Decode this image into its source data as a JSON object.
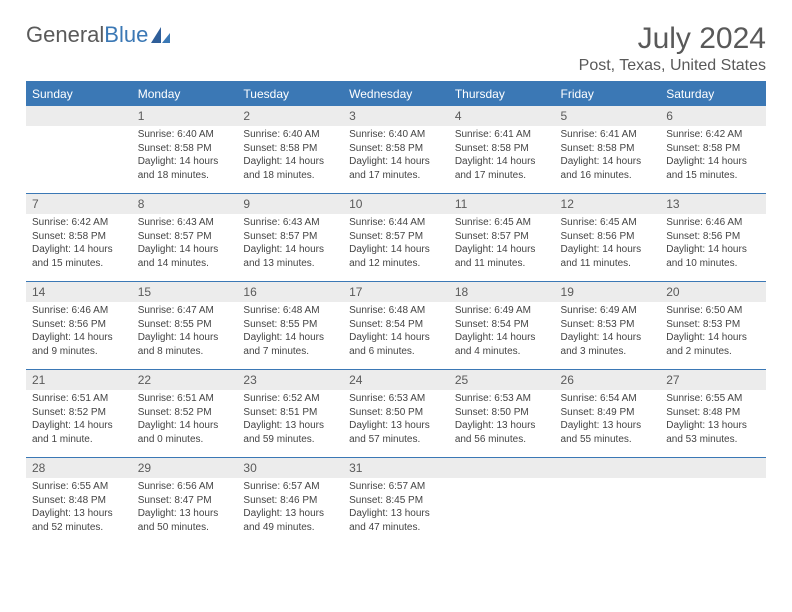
{
  "brand": {
    "part1": "General",
    "part2": "Blue"
  },
  "title": "July 2024",
  "location": "Post, Texas, United States",
  "colors": {
    "header_bg": "#3b78b5",
    "header_text": "#ffffff",
    "daynum_bg": "#ececec",
    "body_bg": "#ffffff",
    "text": "#444444",
    "title_text": "#595959",
    "row_divider": "#3b78b5"
  },
  "weekdays": [
    "Sunday",
    "Monday",
    "Tuesday",
    "Wednesday",
    "Thursday",
    "Friday",
    "Saturday"
  ],
  "weeks": [
    [
      null,
      {
        "n": "1",
        "sunrise": "Sunrise: 6:40 AM",
        "sunset": "Sunset: 8:58 PM",
        "daylight": "Daylight: 14 hours and 18 minutes."
      },
      {
        "n": "2",
        "sunrise": "Sunrise: 6:40 AM",
        "sunset": "Sunset: 8:58 PM",
        "daylight": "Daylight: 14 hours and 18 minutes."
      },
      {
        "n": "3",
        "sunrise": "Sunrise: 6:40 AM",
        "sunset": "Sunset: 8:58 PM",
        "daylight": "Daylight: 14 hours and 17 minutes."
      },
      {
        "n": "4",
        "sunrise": "Sunrise: 6:41 AM",
        "sunset": "Sunset: 8:58 PM",
        "daylight": "Daylight: 14 hours and 17 minutes."
      },
      {
        "n": "5",
        "sunrise": "Sunrise: 6:41 AM",
        "sunset": "Sunset: 8:58 PM",
        "daylight": "Daylight: 14 hours and 16 minutes."
      },
      {
        "n": "6",
        "sunrise": "Sunrise: 6:42 AM",
        "sunset": "Sunset: 8:58 PM",
        "daylight": "Daylight: 14 hours and 15 minutes."
      }
    ],
    [
      {
        "n": "7",
        "sunrise": "Sunrise: 6:42 AM",
        "sunset": "Sunset: 8:58 PM",
        "daylight": "Daylight: 14 hours and 15 minutes."
      },
      {
        "n": "8",
        "sunrise": "Sunrise: 6:43 AM",
        "sunset": "Sunset: 8:57 PM",
        "daylight": "Daylight: 14 hours and 14 minutes."
      },
      {
        "n": "9",
        "sunrise": "Sunrise: 6:43 AM",
        "sunset": "Sunset: 8:57 PM",
        "daylight": "Daylight: 14 hours and 13 minutes."
      },
      {
        "n": "10",
        "sunrise": "Sunrise: 6:44 AM",
        "sunset": "Sunset: 8:57 PM",
        "daylight": "Daylight: 14 hours and 12 minutes."
      },
      {
        "n": "11",
        "sunrise": "Sunrise: 6:45 AM",
        "sunset": "Sunset: 8:57 PM",
        "daylight": "Daylight: 14 hours and 11 minutes."
      },
      {
        "n": "12",
        "sunrise": "Sunrise: 6:45 AM",
        "sunset": "Sunset: 8:56 PM",
        "daylight": "Daylight: 14 hours and 11 minutes."
      },
      {
        "n": "13",
        "sunrise": "Sunrise: 6:46 AM",
        "sunset": "Sunset: 8:56 PM",
        "daylight": "Daylight: 14 hours and 10 minutes."
      }
    ],
    [
      {
        "n": "14",
        "sunrise": "Sunrise: 6:46 AM",
        "sunset": "Sunset: 8:56 PM",
        "daylight": "Daylight: 14 hours and 9 minutes."
      },
      {
        "n": "15",
        "sunrise": "Sunrise: 6:47 AM",
        "sunset": "Sunset: 8:55 PM",
        "daylight": "Daylight: 14 hours and 8 minutes."
      },
      {
        "n": "16",
        "sunrise": "Sunrise: 6:48 AM",
        "sunset": "Sunset: 8:55 PM",
        "daylight": "Daylight: 14 hours and 7 minutes."
      },
      {
        "n": "17",
        "sunrise": "Sunrise: 6:48 AM",
        "sunset": "Sunset: 8:54 PM",
        "daylight": "Daylight: 14 hours and 6 minutes."
      },
      {
        "n": "18",
        "sunrise": "Sunrise: 6:49 AM",
        "sunset": "Sunset: 8:54 PM",
        "daylight": "Daylight: 14 hours and 4 minutes."
      },
      {
        "n": "19",
        "sunrise": "Sunrise: 6:49 AM",
        "sunset": "Sunset: 8:53 PM",
        "daylight": "Daylight: 14 hours and 3 minutes."
      },
      {
        "n": "20",
        "sunrise": "Sunrise: 6:50 AM",
        "sunset": "Sunset: 8:53 PM",
        "daylight": "Daylight: 14 hours and 2 minutes."
      }
    ],
    [
      {
        "n": "21",
        "sunrise": "Sunrise: 6:51 AM",
        "sunset": "Sunset: 8:52 PM",
        "daylight": "Daylight: 14 hours and 1 minute."
      },
      {
        "n": "22",
        "sunrise": "Sunrise: 6:51 AM",
        "sunset": "Sunset: 8:52 PM",
        "daylight": "Daylight: 14 hours and 0 minutes."
      },
      {
        "n": "23",
        "sunrise": "Sunrise: 6:52 AM",
        "sunset": "Sunset: 8:51 PM",
        "daylight": "Daylight: 13 hours and 59 minutes."
      },
      {
        "n": "24",
        "sunrise": "Sunrise: 6:53 AM",
        "sunset": "Sunset: 8:50 PM",
        "daylight": "Daylight: 13 hours and 57 minutes."
      },
      {
        "n": "25",
        "sunrise": "Sunrise: 6:53 AM",
        "sunset": "Sunset: 8:50 PM",
        "daylight": "Daylight: 13 hours and 56 minutes."
      },
      {
        "n": "26",
        "sunrise": "Sunrise: 6:54 AM",
        "sunset": "Sunset: 8:49 PM",
        "daylight": "Daylight: 13 hours and 55 minutes."
      },
      {
        "n": "27",
        "sunrise": "Sunrise: 6:55 AM",
        "sunset": "Sunset: 8:48 PM",
        "daylight": "Daylight: 13 hours and 53 minutes."
      }
    ],
    [
      {
        "n": "28",
        "sunrise": "Sunrise: 6:55 AM",
        "sunset": "Sunset: 8:48 PM",
        "daylight": "Daylight: 13 hours and 52 minutes."
      },
      {
        "n": "29",
        "sunrise": "Sunrise: 6:56 AM",
        "sunset": "Sunset: 8:47 PM",
        "daylight": "Daylight: 13 hours and 50 minutes."
      },
      {
        "n": "30",
        "sunrise": "Sunrise: 6:57 AM",
        "sunset": "Sunset: 8:46 PM",
        "daylight": "Daylight: 13 hours and 49 minutes."
      },
      {
        "n": "31",
        "sunrise": "Sunrise: 6:57 AM",
        "sunset": "Sunset: 8:45 PM",
        "daylight": "Daylight: 13 hours and 47 minutes."
      },
      null,
      null,
      null
    ]
  ]
}
